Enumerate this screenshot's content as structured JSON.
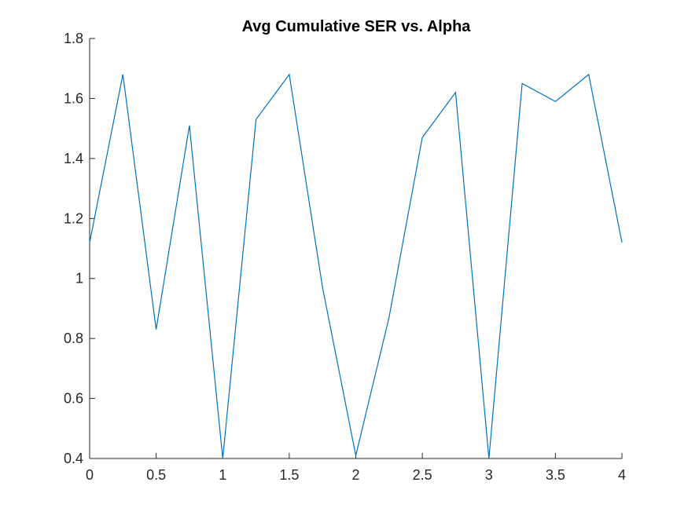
{
  "chart_data": {
    "type": "line",
    "title": "Avg Cumulative SER vs. Alpha",
    "xlabel": "",
    "ylabel": "",
    "xlim": [
      0,
      4
    ],
    "ylim": [
      0.4,
      1.8
    ],
    "xticks": [
      "0",
      "0.5",
      "1",
      "1.5",
      "2",
      "2.5",
      "3",
      "3.5",
      "4"
    ],
    "yticks": [
      "0.4",
      "0.6",
      "0.8",
      "1",
      "1.2",
      "1.4",
      "1.6",
      "1.8"
    ],
    "grid": false,
    "series": [
      {
        "color": "#0072BD",
        "x": [
          0,
          0.25,
          0.5,
          0.75,
          1,
          1.25,
          1.5,
          1.75,
          2,
          2.25,
          2.5,
          2.75,
          3,
          3.25,
          3.5,
          3.75,
          4
        ],
        "y": [
          1.12,
          1.68,
          0.83,
          1.51,
          0.4,
          1.53,
          1.68,
          0.97,
          0.41,
          0.87,
          1.47,
          1.62,
          0.4,
          1.65,
          1.59,
          1.68,
          1.12
        ]
      }
    ]
  }
}
